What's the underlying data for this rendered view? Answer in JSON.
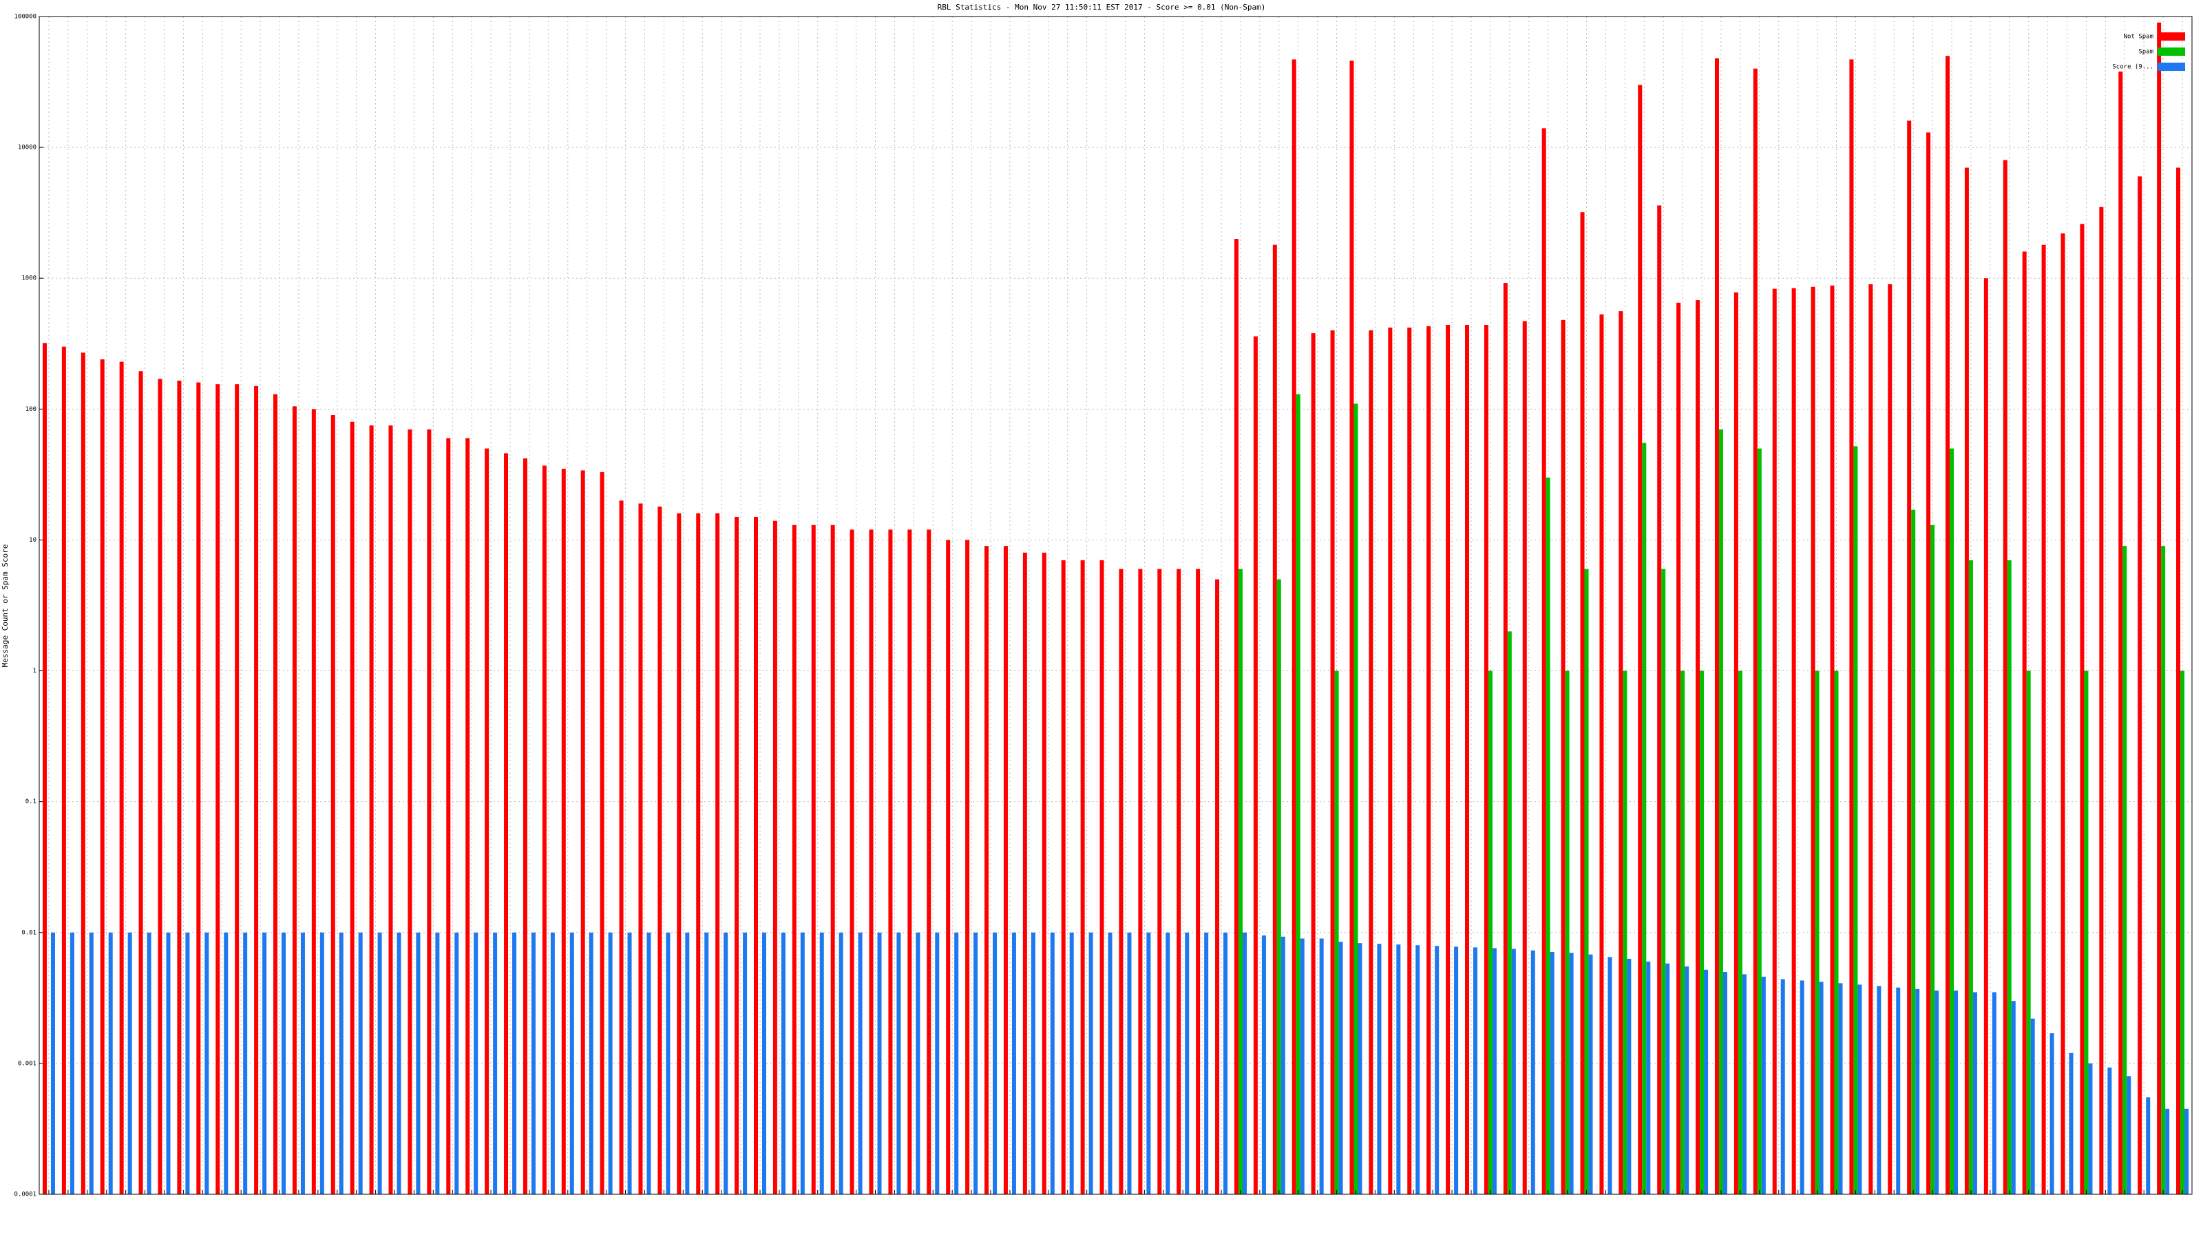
{
  "chart_data": {
    "type": "bar",
    "title": "RBL Statistics - Mon Nov 27 11:50:11 EST 2017 - Score >= 0.01 (Non-Spam)",
    "y_label": "Message Count or Spam Score",
    "log_scale": true,
    "grid": true,
    "legend": "top-right",
    "ylim": [
      0.0001,
      100000
    ],
    "yticks": [
      0.0001,
      0.001,
      0.01,
      0.1,
      1,
      10,
      100,
      1000,
      10000,
      100000
    ],
    "categories": [
      null,
      null,
      null,
      null,
      null,
      null,
      null,
      null,
      null,
      null,
      null,
      null,
      null,
      null,
      null,
      null,
      null,
      null,
      null,
      null,
      null,
      null,
      null,
      null,
      null,
      null,
      null,
      null,
      null,
      null,
      null,
      null,
      null,
      null,
      null,
      null,
      null,
      null,
      null,
      null,
      null,
      null,
      null,
      null,
      null,
      null,
      null,
      null,
      null,
      null,
      null,
      null,
      null,
      null,
      null,
      null,
      null,
      null,
      null,
      null,
      null,
      null,
      null,
      null,
      null,
      null,
      null,
      null,
      null,
      null,
      null,
      null,
      null,
      null,
      null,
      null,
      null,
      null,
      null,
      null,
      null,
      null,
      null,
      null,
      null,
      null,
      null,
      null,
      null,
      null,
      null,
      null,
      null,
      null,
      null,
      null,
      null,
      null,
      null,
      null,
      null,
      null,
      null,
      null,
      null,
      null,
      null,
      null,
      null,
      null,
      null,
      null
    ],
    "series": [
      {
        "name": "Not Spam",
        "color": "#ff0000",
        "values": [
          320,
          300,
          270,
          240,
          230,
          195,
          170,
          165,
          160,
          155,
          155,
          150,
          130,
          105,
          100,
          90,
          80,
          75,
          75,
          70,
          70,
          60,
          60,
          50,
          46,
          42,
          37,
          35,
          34,
          33,
          20,
          19,
          18,
          16,
          16,
          16,
          15,
          15,
          14,
          13,
          13,
          13,
          12,
          12,
          12,
          12,
          12,
          10,
          10,
          9,
          9,
          8,
          8,
          7,
          7,
          7,
          6,
          6,
          6,
          6,
          6,
          5,
          2000,
          360,
          1800,
          47000,
          380,
          400,
          46000,
          400,
          420,
          420,
          430,
          440,
          440,
          440,
          920,
          470,
          14000,
          480,
          3200,
          530,
          560,
          30000,
          3600,
          650,
          680,
          48000,
          780,
          40000,
          830,
          840,
          860,
          880,
          47000,
          900,
          900,
          16000,
          13000,
          50000,
          7000,
          1000,
          8000,
          1600,
          1800,
          2200,
          2600,
          3500,
          38000,
          6000,
          90000,
          7000
        ]
      },
      {
        "name": "Spam",
        "color": "#00c000",
        "values": [
          null,
          null,
          null,
          null,
          null,
          null,
          null,
          null,
          null,
          null,
          null,
          null,
          null,
          null,
          null,
          null,
          null,
          null,
          null,
          null,
          null,
          null,
          null,
          null,
          null,
          null,
          null,
          null,
          null,
          null,
          null,
          null,
          null,
          null,
          null,
          null,
          null,
          null,
          null,
          null,
          null,
          null,
          null,
          null,
          null,
          null,
          null,
          null,
          null,
          null,
          null,
          null,
          null,
          null,
          null,
          null,
          null,
          null,
          null,
          null,
          null,
          null,
          6,
          null,
          5,
          130,
          null,
          1,
          110,
          null,
          null,
          null,
          null,
          null,
          null,
          1,
          2,
          null,
          30,
          1,
          6,
          null,
          1,
          55,
          6,
          1,
          1,
          70,
          1,
          50,
          null,
          null,
          1,
          1,
          52,
          null,
          null,
          17,
          13,
          50,
          7,
          null,
          7,
          1,
          null,
          null,
          1,
          null,
          9,
          null,
          9,
          1
        ]
      },
      {
        "name": "Score (9...",
        "color": "#1e78f0",
        "values": [
          0.01,
          0.01,
          0.01,
          0.01,
          0.01,
          0.01,
          0.01,
          0.01,
          0.01,
          0.01,
          0.01,
          0.01,
          0.01,
          0.01,
          0.01,
          0.01,
          0.01,
          0.01,
          0.01,
          0.01,
          0.01,
          0.01,
          0.01,
          0.01,
          0.01,
          0.01,
          0.01,
          0.01,
          0.01,
          0.01,
          0.01,
          0.01,
          0.01,
          0.01,
          0.01,
          0.01,
          0.01,
          0.01,
          0.01,
          0.01,
          0.01,
          0.01,
          0.01,
          0.01,
          0.01,
          0.01,
          0.01,
          0.01,
          0.01,
          0.01,
          0.01,
          0.01,
          0.01,
          0.01,
          0.01,
          0.01,
          0.01,
          0.01,
          0.01,
          0.01,
          0.01,
          0.01,
          0.01,
          0.0095,
          0.0093,
          0.009,
          0.009,
          0.0085,
          0.0083,
          0.0082,
          0.0081,
          0.008,
          0.0079,
          0.0078,
          0.0077,
          0.0076,
          0.0075,
          0.0073,
          0.0071,
          0.007,
          0.0068,
          0.0065,
          0.0063,
          0.006,
          0.0058,
          0.0055,
          0.0052,
          0.005,
          0.0048,
          0.0046,
          0.0044,
          0.0043,
          0.0042,
          0.0041,
          0.004,
          0.0039,
          0.0038,
          0.0037,
          0.0036,
          0.0036,
          0.0035,
          0.0035,
          0.003,
          0.0022,
          0.0017,
          0.0012,
          0.001,
          0.00093,
          0.0008,
          0.00055,
          0.00045,
          0.00045
        ]
      }
    ]
  }
}
